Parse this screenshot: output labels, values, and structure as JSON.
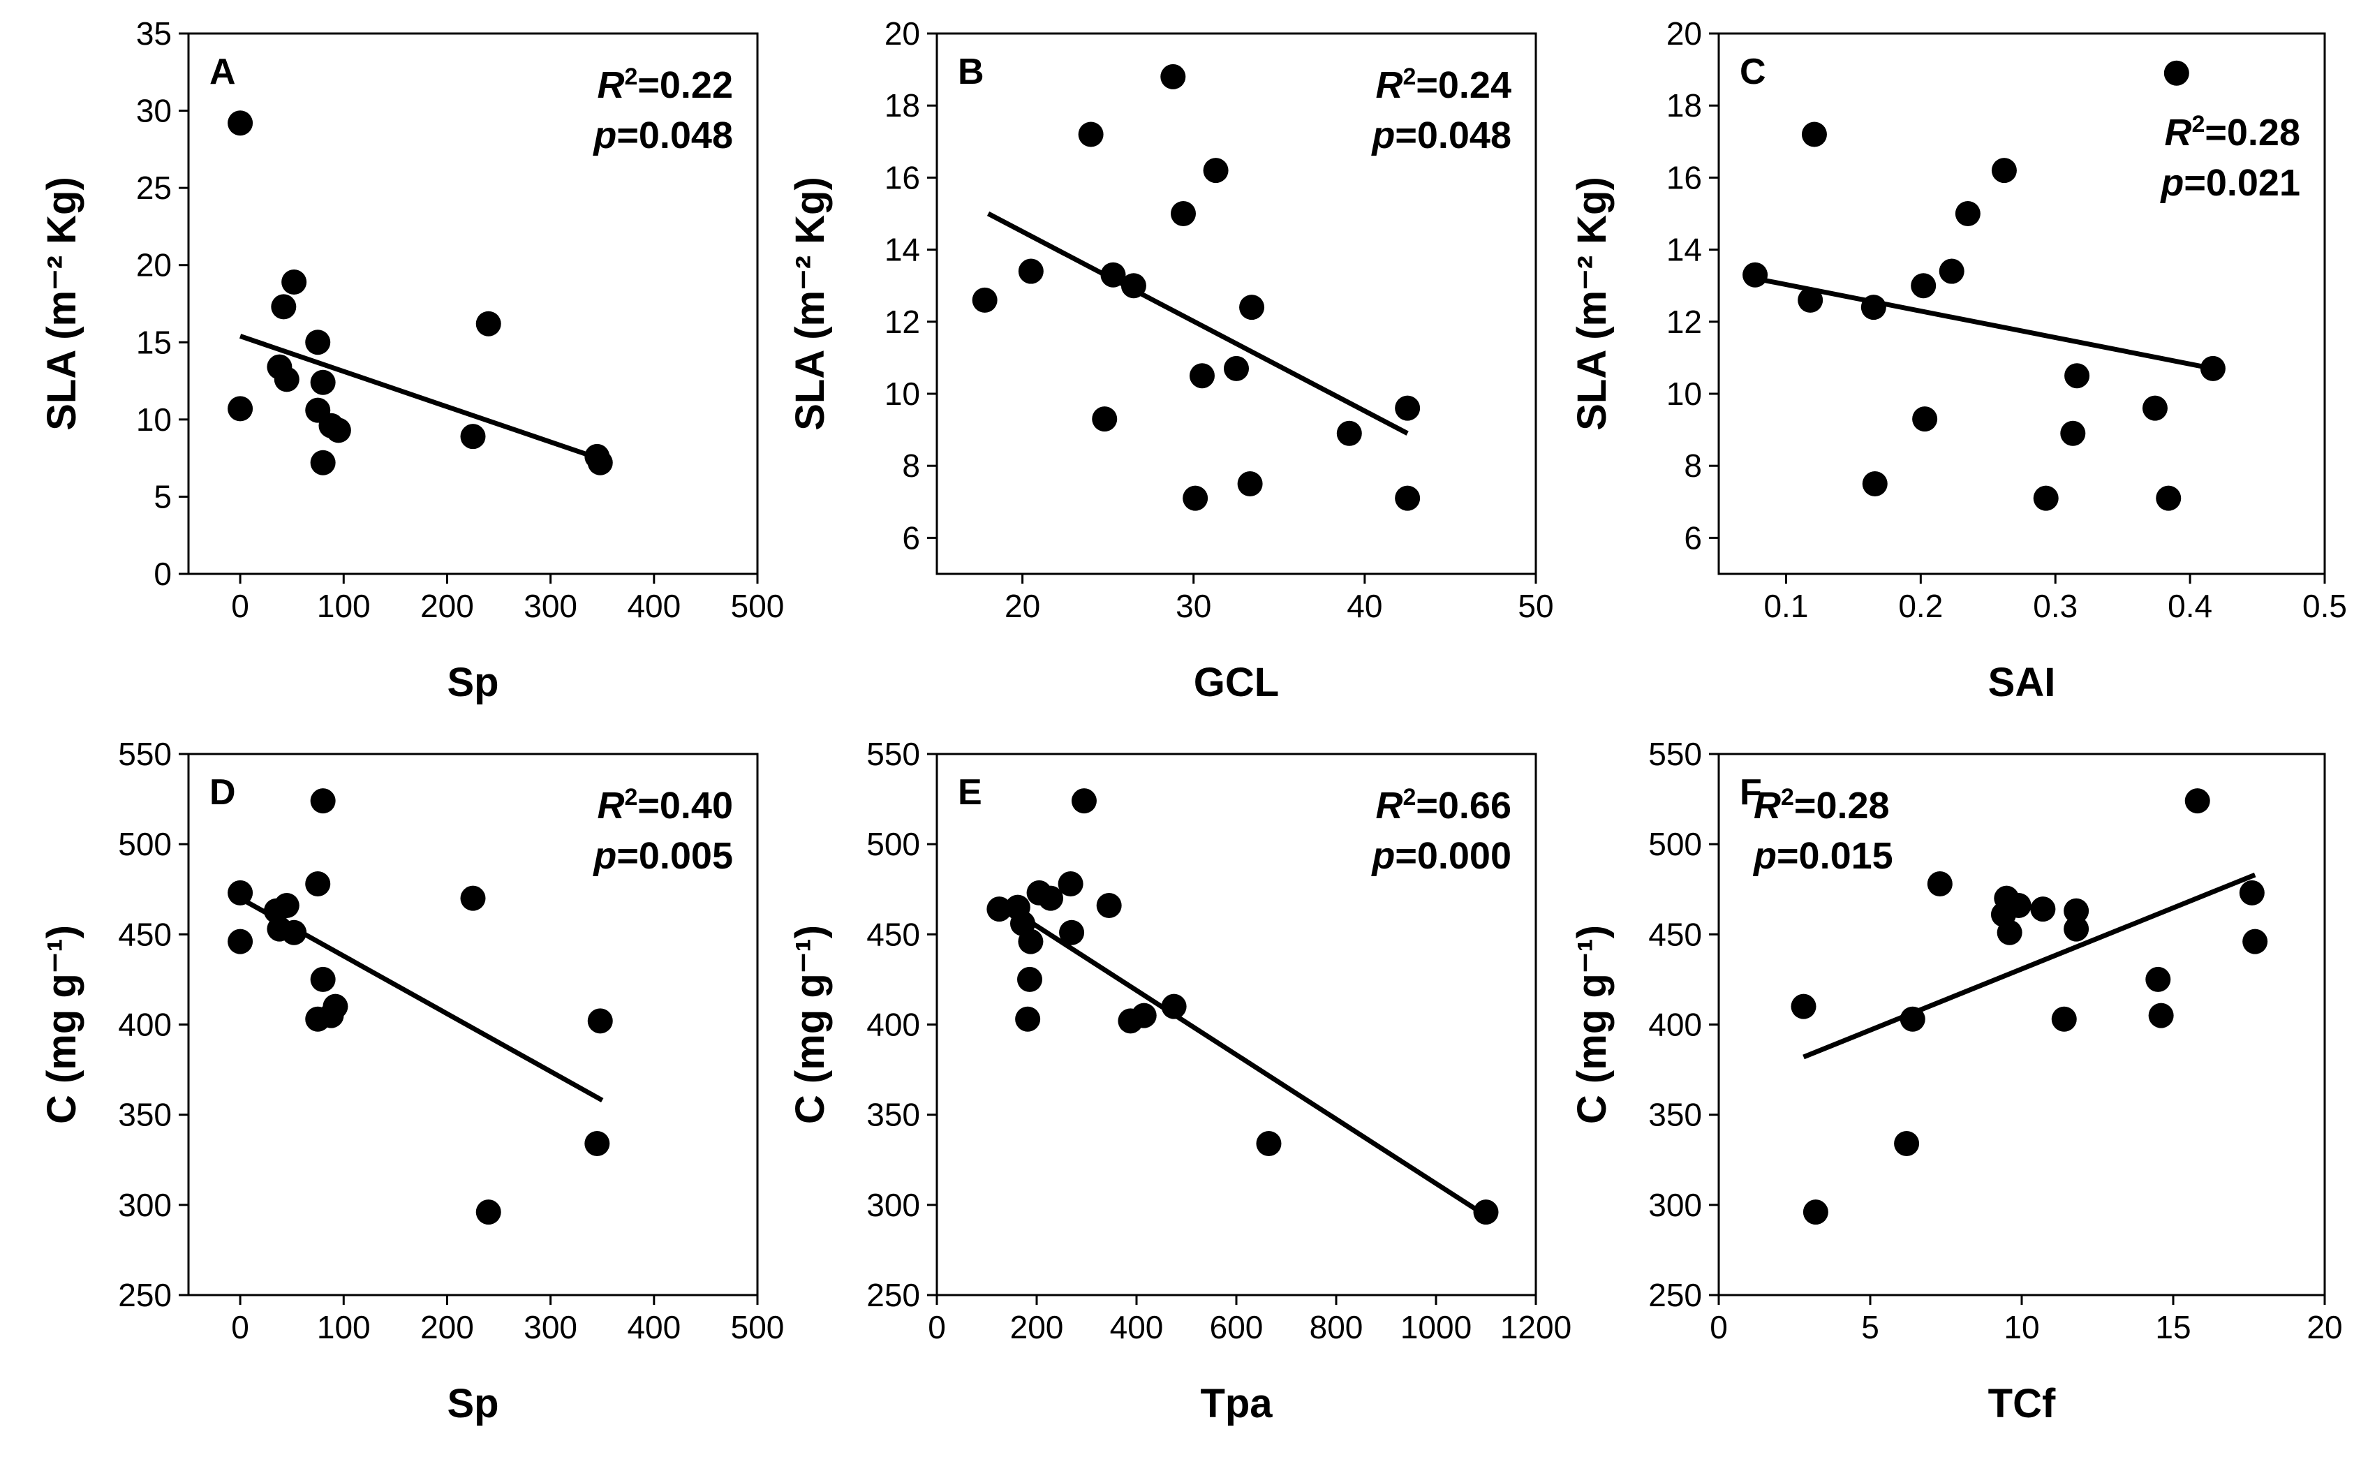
{
  "figure": {
    "panels": [
      {
        "id": "A",
        "r2": "0.22",
        "p": "0.048"
      },
      {
        "id": "B",
        "r2": "0.24",
        "p": "0.048"
      },
      {
        "id": "C",
        "r2": "0.28",
        "p": "0.021"
      },
      {
        "id": "D",
        "r2": "0.40",
        "p": "0.005"
      },
      {
        "id": "E",
        "r2": "0.66",
        "p": "0.000"
      },
      {
        "id": "F",
        "r2": "0.28",
        "p": "0.015"
      }
    ]
  },
  "chart_data": [
    {
      "type": "scatter",
      "panel": "A",
      "xlabel": "Sp",
      "ylabel": "SLA (m⁻² Kg)",
      "xlim": [
        -50,
        500
      ],
      "ylim": [
        0,
        35
      ],
      "xticks": [
        0,
        100,
        200,
        300,
        400,
        500
      ],
      "yticks": [
        0,
        5,
        10,
        15,
        20,
        25,
        30,
        35
      ],
      "points": [
        [
          0,
          29.2
        ],
        [
          0,
          10.7
        ],
        [
          38,
          13.4
        ],
        [
          42,
          17.3
        ],
        [
          45,
          12.6
        ],
        [
          52,
          18.9
        ],
        [
          75,
          15.0
        ],
        [
          75,
          10.6
        ],
        [
          80,
          12.4
        ],
        [
          80,
          7.2
        ],
        [
          88,
          9.6
        ],
        [
          95,
          9.3
        ],
        [
          225,
          8.9
        ],
        [
          240,
          16.2
        ],
        [
          345,
          7.6
        ],
        [
          348,
          7.2
        ]
      ],
      "fit": {
        "x": [
          0,
          350
        ],
        "y": [
          15.4,
          7.4
        ]
      },
      "annotation": {
        "r2": "0.22",
        "p": "0.048"
      }
    },
    {
      "type": "scatter",
      "panel": "B",
      "xlabel": "GCL",
      "ylabel": "SLA (m⁻² Kg)",
      "xlim": [
        15,
        50
      ],
      "ylim": [
        5,
        20
      ],
      "xticks": [
        20,
        30,
        40,
        50
      ],
      "yticks": [
        6,
        8,
        10,
        12,
        14,
        16,
        18,
        20
      ],
      "points": [
        [
          17.8,
          12.6
        ],
        [
          20.5,
          13.4
        ],
        [
          24,
          17.2
        ],
        [
          24.8,
          9.3
        ],
        [
          25.3,
          13.3
        ],
        [
          26.5,
          13.0
        ],
        [
          28.8,
          18.8
        ],
        [
          29.4,
          15.0
        ],
        [
          30.1,
          7.1
        ],
        [
          30.5,
          10.5
        ],
        [
          31.3,
          16.2
        ],
        [
          32.5,
          10.7
        ],
        [
          33.3,
          7.5
        ],
        [
          33.4,
          12.4
        ],
        [
          39.1,
          8.9
        ],
        [
          42.5,
          9.6
        ],
        [
          42.5,
          7.1
        ]
      ],
      "fit": {
        "x": [
          18,
          42.5
        ],
        "y": [
          15.0,
          8.9
        ]
      },
      "annotation": {
        "r2": "0.24",
        "p": "0.048"
      }
    },
    {
      "type": "scatter",
      "panel": "C",
      "xlabel": "SAI",
      "ylabel": "SLA (m⁻² Kg)",
      "xlim": [
        0.05,
        0.5
      ],
      "ylim": [
        5,
        20
      ],
      "xticks": [
        0.1,
        0.2,
        0.3,
        0.4,
        0.5
      ],
      "yticks": [
        6,
        8,
        10,
        12,
        14,
        16,
        18,
        20
      ],
      "points": [
        [
          0.077,
          13.3
        ],
        [
          0.118,
          12.6
        ],
        [
          0.121,
          17.2
        ],
        [
          0.165,
          12.4
        ],
        [
          0.166,
          7.5
        ],
        [
          0.202,
          13.0
        ],
        [
          0.203,
          9.3
        ],
        [
          0.223,
          13.4
        ],
        [
          0.235,
          15.0
        ],
        [
          0.262,
          16.2
        ],
        [
          0.293,
          7.1
        ],
        [
          0.313,
          8.9
        ],
        [
          0.316,
          10.5
        ],
        [
          0.374,
          9.6
        ],
        [
          0.384,
          7.1
        ],
        [
          0.39,
          18.9
        ],
        [
          0.417,
          10.7
        ]
      ],
      "fit": {
        "x": [
          0.077,
          0.417
        ],
        "y": [
          13.2,
          10.7
        ]
      },
      "annotation": {
        "r2": "0.28",
        "p": "0.021"
      }
    },
    {
      "type": "scatter",
      "panel": "D",
      "xlabel": "Sp",
      "ylabel": "C (mg g⁻¹)",
      "xlim": [
        -50,
        500
      ],
      "ylim": [
        250,
        550
      ],
      "xticks": [
        0,
        100,
        200,
        300,
        400,
        500
      ],
      "yticks": [
        250,
        300,
        350,
        400,
        450,
        500,
        550
      ],
      "points": [
        [
          0,
          473
        ],
        [
          0,
          446
        ],
        [
          35,
          463
        ],
        [
          38,
          453
        ],
        [
          45,
          466
        ],
        [
          52,
          451
        ],
        [
          75,
          478
        ],
        [
          75,
          403
        ],
        [
          80,
          524
        ],
        [
          80,
          425
        ],
        [
          88,
          405
        ],
        [
          92,
          410
        ],
        [
          225,
          470
        ],
        [
          240,
          296
        ],
        [
          345,
          334
        ],
        [
          348,
          402
        ]
      ],
      "fit": {
        "x": [
          0,
          350
        ],
        "y": [
          470,
          358
        ]
      },
      "annotation": {
        "r2": "0.40",
        "p": "0.005"
      }
    },
    {
      "type": "scatter",
      "panel": "E",
      "xlabel": "Tpa",
      "ylabel": "C (mg g⁻¹)",
      "xlim": [
        0,
        1200
      ],
      "ylim": [
        250,
        550
      ],
      "xticks": [
        0,
        200,
        400,
        600,
        800,
        1000,
        1200
      ],
      "yticks": [
        250,
        300,
        350,
        400,
        450,
        500,
        550
      ],
      "points": [
        [
          125,
          464
        ],
        [
          162,
          465
        ],
        [
          172,
          456
        ],
        [
          182,
          403
        ],
        [
          186,
          425
        ],
        [
          188,
          446
        ],
        [
          205,
          473
        ],
        [
          228,
          470
        ],
        [
          268,
          478
        ],
        [
          270,
          451
        ],
        [
          295,
          524
        ],
        [
          345,
          466
        ],
        [
          388,
          402
        ],
        [
          415,
          405
        ],
        [
          475,
          410
        ],
        [
          665,
          334
        ],
        [
          1100,
          296
        ]
      ],
      "fit": {
        "x": [
          125,
          1100
        ],
        "y": [
          468,
          294
        ]
      },
      "annotation": {
        "r2": "0.66",
        "p": "0.000"
      }
    },
    {
      "type": "scatter",
      "panel": "F",
      "xlabel": "TCf",
      "ylabel": "C (mg g⁻¹)",
      "xlim": [
        0,
        20
      ],
      "ylim": [
        250,
        550
      ],
      "xticks": [
        0,
        5,
        10,
        15,
        20
      ],
      "yticks": [
        250,
        300,
        350,
        400,
        450,
        500,
        550
      ],
      "points": [
        [
          2.8,
          410
        ],
        [
          3.2,
          296
        ],
        [
          6.2,
          334
        ],
        [
          6.4,
          403
        ],
        [
          7.3,
          478
        ],
        [
          9.4,
          461
        ],
        [
          9.5,
          470
        ],
        [
          9.6,
          451
        ],
        [
          9.9,
          466
        ],
        [
          10.7,
          464
        ],
        [
          11.4,
          403
        ],
        [
          11.8,
          463
        ],
        [
          11.8,
          453
        ],
        [
          14.5,
          425
        ],
        [
          14.6,
          405
        ],
        [
          15.8,
          524
        ],
        [
          17.6,
          473
        ],
        [
          17.7,
          446
        ]
      ],
      "fit": {
        "x": [
          2.8,
          17.7
        ],
        "y": [
          382,
          483
        ]
      },
      "annotation": {
        "r2": "0.28",
        "p": "0.015"
      }
    }
  ]
}
